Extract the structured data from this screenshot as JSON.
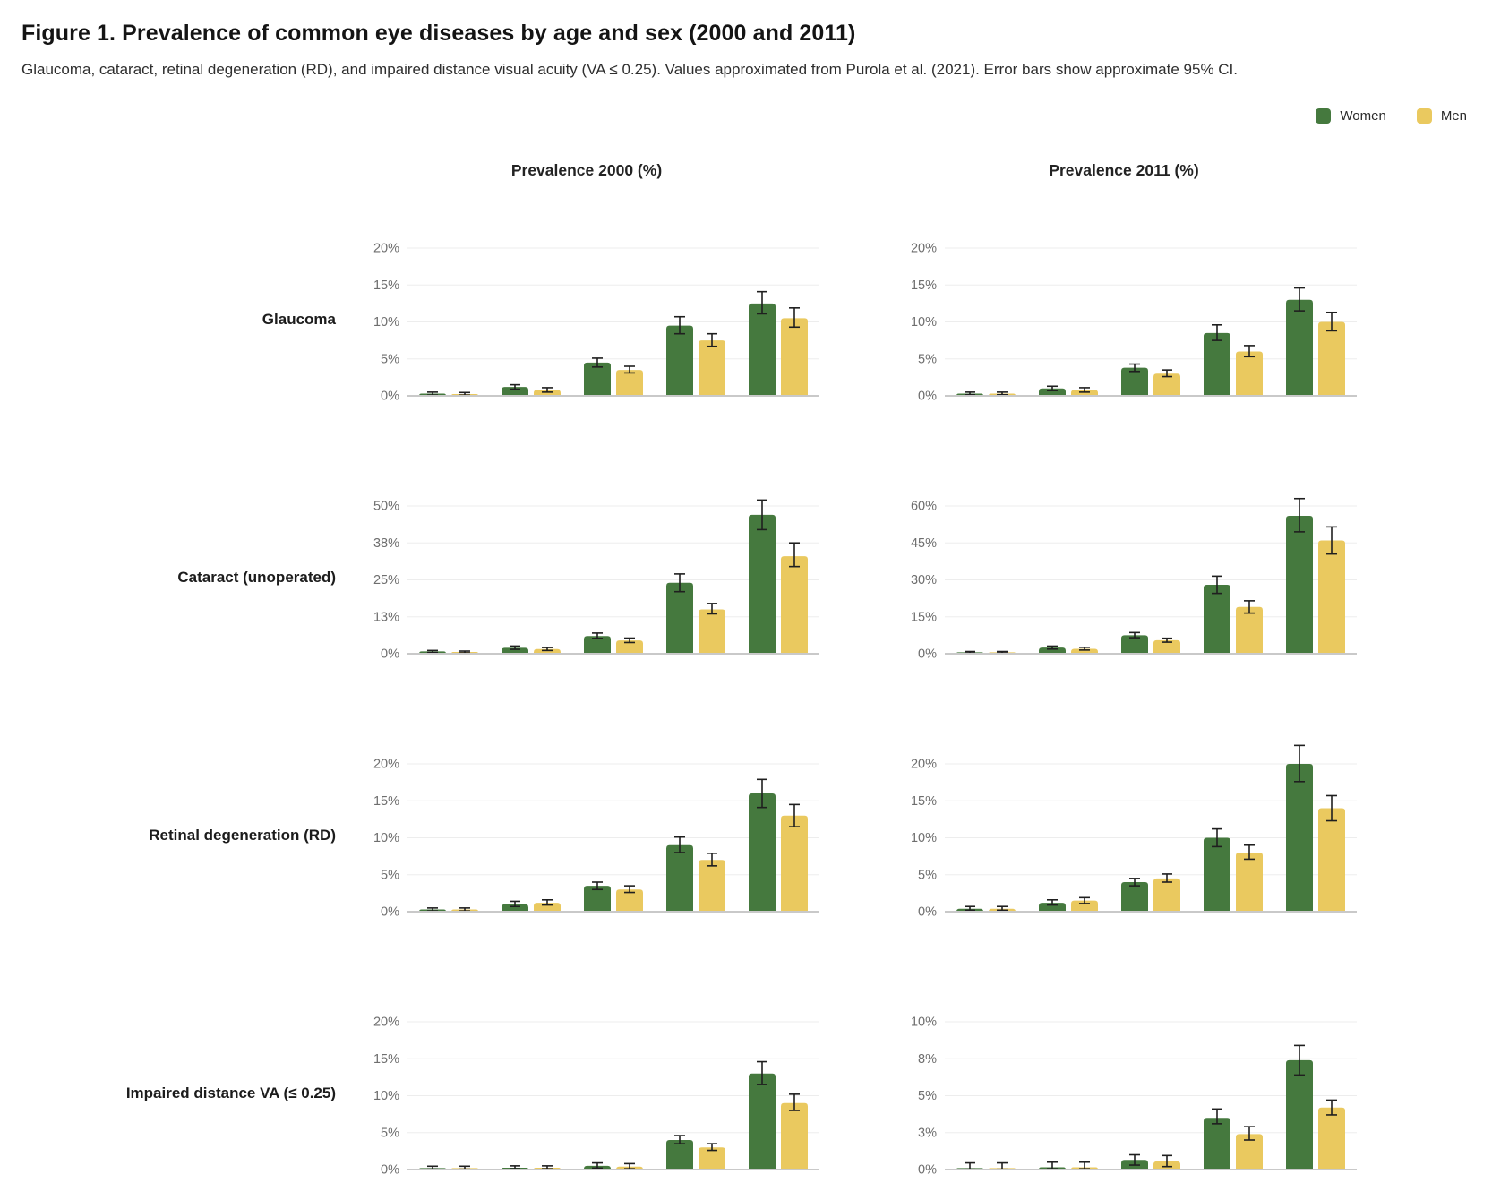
{
  "figure": {
    "title": "Figure 1. Prevalence of common eye diseases by age and sex (2000 and 2011)",
    "subtitle": "Glaucoma, cataract, retinal degeneration (RD), and impaired distance visual acuity (VA ≤ 0.25). Values approximated from Purola et al. (2021). Error bars show approximate 95% CI.",
    "column_headers": [
      "Prevalence 2000 (%)",
      "Prevalence 2011 (%)"
    ],
    "legend": [
      {
        "label": "Women",
        "color": "#45793e"
      },
      {
        "label": "Men",
        "color": "#eac95f"
      }
    ]
  },
  "chart_data": {
    "type": "bar",
    "series_names": [
      "Women",
      "Men"
    ],
    "colors": {
      "Women": "#45793e",
      "Men": "#eac95f"
    },
    "error_bars": "approximate 95% CI",
    "n_groups_per_chart": 5,
    "x_group_labels_visible": false,
    "rows": [
      {
        "label": "Glaucoma",
        "charts": [
          {
            "column": "Prevalence 2000 (%)",
            "ymax": 20,
            "yticks": [
              {
                "value": 0,
                "label": "0%"
              },
              {
                "value": 5,
                "label": "5%"
              },
              {
                "value": 10,
                "label": "10%"
              },
              {
                "value": 15,
                "label": "15%"
              },
              {
                "value": 20,
                "label": "20%"
              }
            ],
            "series": [
              {
                "name": "Women",
                "values": [
                  0.3,
                  1.2,
                  4.5,
                  9.5,
                  12.5
                ],
                "ci_low": [
                  0.1,
                  0.9,
                  3.9,
                  8.4,
                  11.1
                ],
                "ci_high": [
                  0.5,
                  1.5,
                  5.1,
                  10.7,
                  14.1
                ]
              },
              {
                "name": "Men",
                "values": [
                  0.25,
                  0.8,
                  3.5,
                  7.5,
                  10.5
                ],
                "ci_low": [
                  0.1,
                  0.5,
                  3.1,
                  6.7,
                  9.3
                ],
                "ci_high": [
                  0.45,
                  1.1,
                  4.0,
                  8.4,
                  11.9
                ]
              }
            ]
          },
          {
            "column": "Prevalence 2011 (%)",
            "ymax": 20,
            "yticks": [
              {
                "value": 0,
                "label": "0%"
              },
              {
                "value": 5,
                "label": "5%"
              },
              {
                "value": 10,
                "label": "10%"
              },
              {
                "value": 15,
                "label": "15%"
              },
              {
                "value": 20,
                "label": "20%"
              }
            ],
            "series": [
              {
                "name": "Women",
                "values": [
                  0.3,
                  1.0,
                  3.8,
                  8.5,
                  13.0
                ],
                "ci_low": [
                  0.15,
                  0.7,
                  3.3,
                  7.5,
                  11.5
                ],
                "ci_high": [
                  0.5,
                  1.3,
                  4.3,
                  9.6,
                  14.6
                ]
              },
              {
                "name": "Men",
                "values": [
                  0.3,
                  0.8,
                  3.0,
                  6.0,
                  10.0
                ],
                "ci_low": [
                  0.15,
                  0.5,
                  2.6,
                  5.3,
                  8.8
                ],
                "ci_high": [
                  0.5,
                  1.1,
                  3.5,
                  6.8,
                  11.3
                ]
              }
            ]
          }
        ]
      },
      {
        "label": "Cataract (unoperated)",
        "charts": [
          {
            "column": "Prevalence 2000 (%)",
            "ymax": 50,
            "yticks": [
              {
                "value": 0,
                "label": "0%"
              },
              {
                "value": 12.5,
                "label": "13%"
              },
              {
                "value": 25,
                "label": "25%"
              },
              {
                "value": 37.5,
                "label": "38%"
              },
              {
                "value": 50,
                "label": "50%"
              }
            ],
            "series": [
              {
                "name": "Women",
                "values": [
                  0.8,
                  2.0,
                  6.0,
                  24,
                  47
                ],
                "ci_low": [
                  0.4,
                  1.5,
                  5.2,
                  21,
                  42
                ],
                "ci_high": [
                  1.1,
                  2.6,
                  7.0,
                  27,
                  52
                ]
              },
              {
                "name": "Men",
                "values": [
                  0.6,
                  1.6,
                  4.5,
                  15,
                  33
                ],
                "ci_low": [
                  0.3,
                  1.1,
                  3.8,
                  13.5,
                  29.5
                ],
                "ci_high": [
                  0.9,
                  2.1,
                  5.3,
                  17,
                  37.5
                ]
              }
            ]
          },
          {
            "column": "Prevalence 2011 (%)",
            "ymax": 60,
            "yticks": [
              {
                "value": 0,
                "label": "0%"
              },
              {
                "value": 15,
                "label": "15%"
              },
              {
                "value": 30,
                "label": "30%"
              },
              {
                "value": 45,
                "label": "45%"
              },
              {
                "value": 60,
                "label": "60%"
              }
            ],
            "series": [
              {
                "name": "Women",
                "values": [
                  0.6,
                  2.5,
                  7.5,
                  28,
                  56
                ],
                "ci_low": [
                  0.3,
                  1.9,
                  6.5,
                  24.5,
                  49.5
                ],
                "ci_high": [
                  0.9,
                  3.1,
                  8.6,
                  31.5,
                  63
                ]
              },
              {
                "name": "Men",
                "values": [
                  0.6,
                  2.0,
                  5.5,
                  19,
                  46
                ],
                "ci_low": [
                  0.3,
                  1.5,
                  4.7,
                  16.5,
                  40.5
                ],
                "ci_high": [
                  0.9,
                  2.6,
                  6.3,
                  21.5,
                  51.5
                ]
              }
            ]
          }
        ]
      },
      {
        "label": "Retinal degeneration (RD)",
        "charts": [
          {
            "column": "Prevalence 2000 (%)",
            "ymax": 20,
            "yticks": [
              {
                "value": 0,
                "label": "0%"
              },
              {
                "value": 5,
                "label": "5%"
              },
              {
                "value": 10,
                "label": "10%"
              },
              {
                "value": 15,
                "label": "15%"
              },
              {
                "value": 20,
                "label": "20%"
              }
            ],
            "series": [
              {
                "name": "Women",
                "values": [
                  0.3,
                  1.0,
                  3.5,
                  9.0,
                  16.0
                ],
                "ci_low": [
                  0.1,
                  0.7,
                  3.0,
                  8.0,
                  14.1
                ],
                "ci_high": [
                  0.5,
                  1.4,
                  4.0,
                  10.1,
                  17.9
                ]
              },
              {
                "name": "Men",
                "values": [
                  0.3,
                  1.2,
                  3.0,
                  7.0,
                  13.0
                ],
                "ci_low": [
                  0.1,
                  0.9,
                  2.6,
                  6.2,
                  11.5
                ],
                "ci_high": [
                  0.5,
                  1.6,
                  3.5,
                  7.9,
                  14.5
                ]
              }
            ]
          },
          {
            "column": "Prevalence 2011 (%)",
            "ymax": 20,
            "yticks": [
              {
                "value": 0,
                "label": "0%"
              },
              {
                "value": 5,
                "label": "5%"
              },
              {
                "value": 10,
                "label": "10%"
              },
              {
                "value": 15,
                "label": "15%"
              },
              {
                "value": 20,
                "label": "20%"
              }
            ],
            "series": [
              {
                "name": "Women",
                "values": [
                  0.4,
                  1.2,
                  4.0,
                  10.0,
                  20.0
                ],
                "ci_low": [
                  0.2,
                  0.9,
                  3.5,
                  8.8,
                  17.6
                ],
                "ci_high": [
                  0.7,
                  1.6,
                  4.5,
                  11.2,
                  22.5
                ]
              },
              {
                "name": "Men",
                "values": [
                  0.4,
                  1.5,
                  4.5,
                  8.0,
                  14.0
                ],
                "ci_low": [
                  0.2,
                  1.1,
                  4.0,
                  7.1,
                  12.3
                ],
                "ci_high": [
                  0.7,
                  1.9,
                  5.1,
                  9.0,
                  15.7
                ]
              }
            ]
          }
        ]
      },
      {
        "label": "Impaired distance VA (≤ 0.25)",
        "charts": [
          {
            "column": "Prevalence 2000 (%)",
            "ymax": 20,
            "yticks": [
              {
                "value": 0,
                "label": "0%"
              },
              {
                "value": 5,
                "label": "5%"
              },
              {
                "value": 10,
                "label": "10%"
              },
              {
                "value": 15,
                "label": "15%"
              },
              {
                "value": 20,
                "label": "20%"
              }
            ],
            "series": [
              {
                "name": "Women",
                "values": [
                  0.2,
                  0.25,
                  0.5,
                  4.0,
                  13.0
                ],
                "ci_low": [
                  0.05,
                  0.1,
                  0.2,
                  3.5,
                  11.5
                ],
                "ci_high": [
                  0.45,
                  0.5,
                  0.9,
                  4.6,
                  14.6
                ]
              },
              {
                "name": "Men",
                "values": [
                  0.2,
                  0.25,
                  0.4,
                  3.0,
                  9.0
                ],
                "ci_low": [
                  0.05,
                  0.1,
                  0.1,
                  2.6,
                  8.0
                ],
                "ci_high": [
                  0.45,
                  0.5,
                  0.8,
                  3.5,
                  10.2
                ]
              }
            ]
          },
          {
            "column": "Prevalence 2011 (%)",
            "ymax": 10,
            "yticks": [
              {
                "value": 0,
                "label": "0%"
              },
              {
                "value": 2.5,
                "label": "3%"
              },
              {
                "value": 5,
                "label": "5%"
              },
              {
                "value": 7.5,
                "label": "8%"
              },
              {
                "value": 10,
                "label": "10%"
              }
            ],
            "series": [
              {
                "name": "Women",
                "values": [
                  0.1,
                  0.15,
                  0.65,
                  3.5,
                  7.4
                ],
                "ci_low": [
                  0.02,
                  0.05,
                  0.3,
                  3.1,
                  6.4
                ],
                "ci_high": [
                  0.45,
                  0.5,
                  1.0,
                  4.1,
                  8.4
                ]
              },
              {
                "name": "Men",
                "values": [
                  0.1,
                  0.15,
                  0.55,
                  2.4,
                  4.2
                ],
                "ci_low": [
                  0.02,
                  0.05,
                  0.2,
                  2.0,
                  3.7
                ],
                "ci_high": [
                  0.45,
                  0.5,
                  0.95,
                  2.9,
                  4.7
                ]
              }
            ]
          }
        ]
      }
    ]
  }
}
